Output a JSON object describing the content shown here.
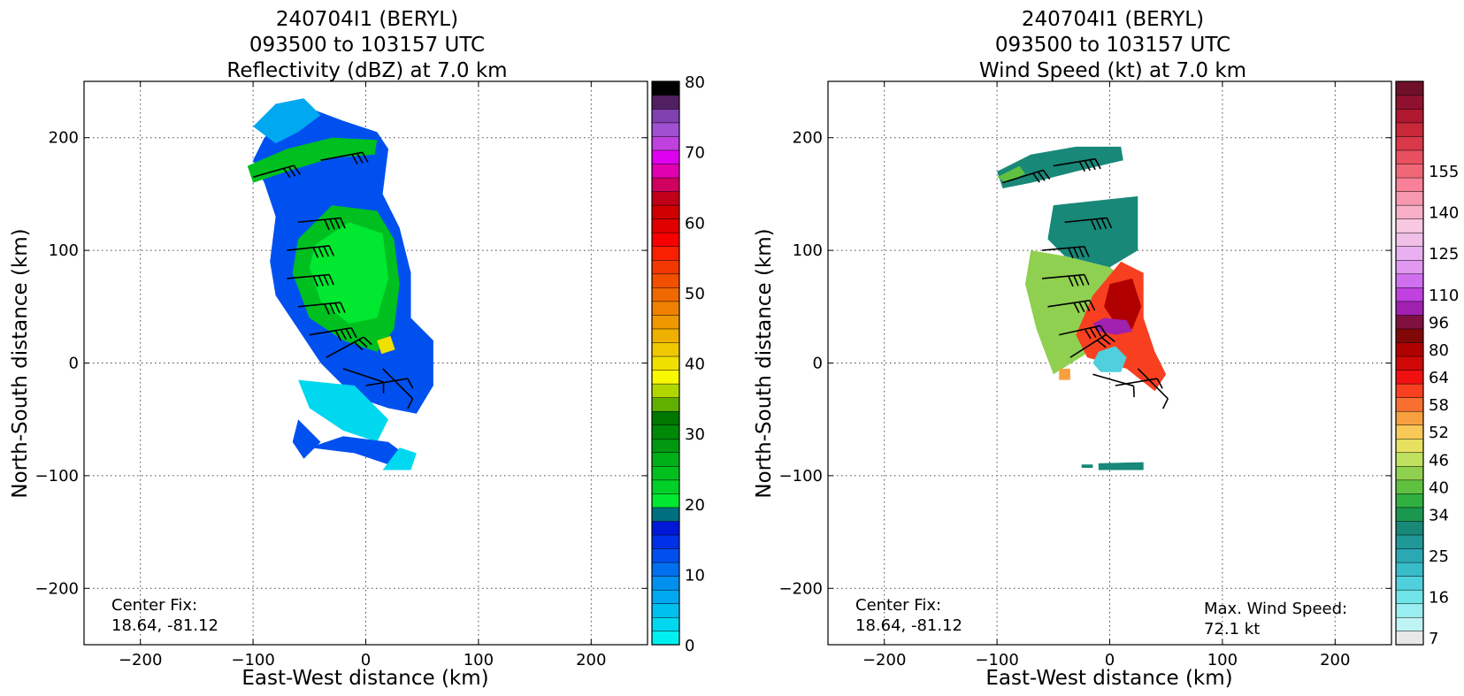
{
  "chart_data": [
    {
      "type": "heatmap",
      "title_lines": [
        "240704I1 (BERYL)",
        "093500 to 103157 UTC",
        "Reflectivity (dBZ) at 7.0 km"
      ],
      "xlabel": "East-West distance (km)",
      "ylabel": "North-South distance (km)",
      "xlim": [
        -250,
        250
      ],
      "ylim": [
        -250,
        250
      ],
      "xticks": [
        -200,
        -100,
        0,
        100,
        200
      ],
      "yticks": [
        -200,
        -100,
        0,
        100,
        200
      ],
      "xtick_labels": [
        "−200",
        "−100",
        "0",
        "100",
        "200"
      ],
      "ytick_labels": [
        "−200",
        "−100",
        "0",
        "100",
        "200"
      ],
      "grid": true,
      "annotation": [
        "Center Fix:",
        "18.64, -81.12"
      ],
      "colorbar": {
        "min": 0,
        "max": 80,
        "tick_values": [
          0,
          10,
          20,
          30,
          40,
          50,
          60,
          70,
          80
        ],
        "tick_labels": [
          "0",
          "10",
          "20",
          "30",
          "40",
          "50",
          "60",
          "70",
          "80"
        ],
        "colors": [
          "#00f0f0",
          "#00d8f0",
          "#00c0f0",
          "#00a8f0",
          "#0090f0",
          "#0070f0",
          "#0050f0",
          "#0030e8",
          "#0018d8",
          "#007080",
          "#00e830",
          "#00d028",
          "#00c020",
          "#00b018",
          "#009810",
          "#008808",
          "#007800",
          "#60b000",
          "#b0d800",
          "#f8f800",
          "#f0e000",
          "#f0c800",
          "#f0b000",
          "#f09800",
          "#f08000",
          "#f06800",
          "#f05000",
          "#f03800",
          "#f82000",
          "#f80000",
          "#e00000",
          "#d00000",
          "#c00018",
          "#d00060",
          "#e000b0",
          "#e000f0",
          "#c040e0",
          "#a050d0",
          "#8040b0",
          "#502060",
          "#000000"
        ]
      },
      "echo_regions": [
        {
          "color": "#0050f0",
          "points": [
            [
              -90,
              200
            ],
            [
              -60,
              230
            ],
            [
              -20,
              215
            ],
            [
              10,
              205
            ],
            [
              20,
              190
            ],
            [
              15,
              150
            ],
            [
              30,
              120
            ],
            [
              40,
              80
            ],
            [
              40,
              40
            ],
            [
              60,
              20
            ],
            [
              60,
              -20
            ],
            [
              45,
              -45
            ],
            [
              20,
              -40
            ],
            [
              -10,
              -30
            ],
            [
              -40,
              0
            ],
            [
              -60,
              30
            ],
            [
              -80,
              60
            ],
            [
              -85,
              90
            ],
            [
              -80,
              130
            ],
            [
              -90,
              160
            ],
            [
              -100,
              180
            ]
          ]
        },
        {
          "color": "#00a8f0",
          "points": [
            [
              -100,
              210
            ],
            [
              -80,
              230
            ],
            [
              -55,
              235
            ],
            [
              -40,
              220
            ],
            [
              -60,
              205
            ],
            [
              -80,
              195
            ]
          ]
        },
        {
          "color": "#00c020",
          "points": [
            [
              -105,
              175
            ],
            [
              -70,
              190
            ],
            [
              -30,
              200
            ],
            [
              10,
              198
            ],
            [
              8,
              185
            ],
            [
              -30,
              182
            ],
            [
              -70,
              170
            ],
            [
              -100,
              160
            ]
          ]
        },
        {
          "color": "#00c020",
          "points": [
            [
              -60,
              110
            ],
            [
              -30,
              140
            ],
            [
              10,
              135
            ],
            [
              25,
              110
            ],
            [
              30,
              70
            ],
            [
              25,
              30
            ],
            [
              10,
              10
            ],
            [
              -20,
              20
            ],
            [
              -50,
              40
            ],
            [
              -65,
              80
            ]
          ]
        },
        {
          "color": "#00e830",
          "points": [
            [
              -45,
              105
            ],
            [
              -15,
              125
            ],
            [
              15,
              115
            ],
            [
              20,
              75
            ],
            [
              10,
              40
            ],
            [
              -15,
              35
            ],
            [
              -40,
              55
            ],
            [
              -50,
              85
            ]
          ]
        },
        {
          "color": "#00d8f0",
          "points": [
            [
              -60,
              -15
            ],
            [
              -10,
              -20
            ],
            [
              20,
              -50
            ],
            [
              10,
              -70
            ],
            [
              -20,
              -60
            ],
            [
              -50,
              -40
            ]
          ]
        },
        {
          "color": "#0050f0",
          "points": [
            [
              -50,
              -75
            ],
            [
              -10,
              -80
            ],
            [
              20,
              -90
            ],
            [
              40,
              -85
            ],
            [
              20,
              -70
            ],
            [
              -20,
              -65
            ]
          ]
        },
        {
          "color": "#0050f0",
          "points": [
            [
              -60,
              -50
            ],
            [
              -40,
              -70
            ],
            [
              -55,
              -85
            ],
            [
              -65,
              -70
            ]
          ]
        },
        {
          "color": "#00d8f0",
          "points": [
            [
              15,
              -95
            ],
            [
              40,
              -95
            ],
            [
              45,
              -80
            ],
            [
              30,
              -75
            ]
          ]
        },
        {
          "color": "#f0e000",
          "points": [
            [
              10,
              20
            ],
            [
              22,
              24
            ],
            [
              26,
              12
            ],
            [
              14,
              8
            ]
          ]
        }
      ],
      "barbs": [
        {
          "x": -100,
          "y": 165,
          "u": 70,
          "v": 20
        },
        {
          "x": -40,
          "y": 180,
          "u": 80,
          "v": 15
        },
        {
          "x": -60,
          "y": 125,
          "u": 100,
          "v": 10
        },
        {
          "x": -70,
          "y": 100,
          "u": 110,
          "v": 12
        },
        {
          "x": -70,
          "y": 75,
          "u": 110,
          "v": 10
        },
        {
          "x": -60,
          "y": 50,
          "u": 100,
          "v": 10
        },
        {
          "x": -50,
          "y": 25,
          "u": 90,
          "v": 15
        },
        {
          "x": -35,
          "y": 5,
          "u": 55,
          "v": 30
        },
        {
          "x": -20,
          "y": -5,
          "u": 30,
          "v": -10
        },
        {
          "x": 0,
          "y": -20,
          "u": 30,
          "v": 5
        },
        {
          "x": 15,
          "y": -5,
          "u": 20,
          "v": -20
        }
      ]
    },
    {
      "type": "heatmap",
      "title_lines": [
        "240704I1 (BERYL)",
        "093500 to 103157 UTC",
        "Wind Speed (kt) at 7.0 km"
      ],
      "xlabel": "East-West distance (km)",
      "ylabel": "North-South distance (km)",
      "xlim": [
        -250,
        250
      ],
      "ylim": [
        -250,
        250
      ],
      "xticks": [
        -200,
        -100,
        0,
        100,
        200
      ],
      "yticks": [
        -200,
        -100,
        0,
        100,
        200
      ],
      "xtick_labels": [
        "−200",
        "−100",
        "0",
        "100",
        "200"
      ],
      "ytick_labels": [
        "−200",
        "−100",
        "0",
        "100",
        "200"
      ],
      "grid": true,
      "annotation": [
        "Center Fix:",
        "18.64, -81.12"
      ],
      "max_annotation": [
        "Max. Wind Speed:",
        "72.1 kt"
      ],
      "colorbar": {
        "levels": 40,
        "tick_labels": [
          "7",
          "16",
          "25",
          "34",
          "40",
          "46",
          "52",
          "58",
          "64",
          "80",
          "96",
          "110",
          "125",
          "140",
          "155"
        ],
        "tick_indices": [
          0,
          3,
          6,
          9,
          11,
          13,
          15,
          17,
          19,
          21,
          23,
          25,
          28,
          31,
          34
        ],
        "colors": [
          "#e8e8e8",
          "#c0f4f4",
          "#98eef0",
          "#70e4e8",
          "#50d0dc",
          "#38bcc8",
          "#2aa8b4",
          "#209898",
          "#188878",
          "#1a9850",
          "#30b040",
          "#60c040",
          "#90d050",
          "#c0e060",
          "#e8e060",
          "#f8c858",
          "#f8a040",
          "#f87030",
          "#f84020",
          "#f01010",
          "#d00808",
          "#b00000",
          "#800808",
          "#801040",
          "#a020b0",
          "#c040e0",
          "#d070f0",
          "#e098f0",
          "#e8b0f0",
          "#f0c0e8",
          "#f8c8e0",
          "#f8b0c8",
          "#f898b0",
          "#f88098",
          "#f06878",
          "#e85060",
          "#d83848",
          "#c82838",
          "#b01830",
          "#901030",
          "#701028"
        ]
      },
      "echo_regions": [
        {
          "color": "#188878",
          "points": [
            [
              -100,
              170
            ],
            [
              -70,
              185
            ],
            [
              -30,
              192
            ],
            [
              10,
              192
            ],
            [
              12,
              180
            ],
            [
              -30,
              170
            ],
            [
              -70,
              160
            ],
            [
              -95,
              155
            ]
          ]
        },
        {
          "color": "#60c040",
          "points": [
            [
              -100,
              165
            ],
            [
              -80,
              175
            ],
            [
              -75,
              168
            ],
            [
              -92,
              160
            ]
          ]
        },
        {
          "color": "#188878",
          "points": [
            [
              -50,
              140
            ],
            [
              25,
              148
            ],
            [
              25,
              100
            ],
            [
              0,
              85
            ],
            [
              -40,
              95
            ],
            [
              -55,
              110
            ]
          ]
        },
        {
          "color": "#90d050",
          "points": [
            [
              -70,
              100
            ],
            [
              -40,
              95
            ],
            [
              0,
              85
            ],
            [
              20,
              70
            ],
            [
              30,
              40
            ],
            [
              20,
              25
            ],
            [
              -10,
              15
            ],
            [
              -50,
              -10
            ],
            [
              -65,
              30
            ],
            [
              -75,
              70
            ]
          ]
        },
        {
          "color": "#f84020",
          "points": [
            [
              -15,
              60
            ],
            [
              10,
              90
            ],
            [
              30,
              80
            ],
            [
              30,
              40
            ],
            [
              40,
              10
            ],
            [
              50,
              -10
            ],
            [
              40,
              -25
            ],
            [
              15,
              -5
            ],
            [
              -20,
              5
            ],
            [
              -30,
              25
            ]
          ]
        },
        {
          "color": "#b00000",
          "points": [
            [
              0,
              70
            ],
            [
              20,
              75
            ],
            [
              28,
              50
            ],
            [
              20,
              30
            ],
            [
              5,
              35
            ],
            [
              -5,
              50
            ]
          ]
        },
        {
          "color": "#a020b0",
          "points": [
            [
              -15,
              35
            ],
            [
              -5,
              40
            ],
            [
              15,
              38
            ],
            [
              20,
              28
            ],
            [
              5,
              25
            ],
            [
              -10,
              28
            ]
          ]
        },
        {
          "color": "#50d0dc",
          "points": [
            [
              -10,
              10
            ],
            [
              5,
              15
            ],
            [
              15,
              5
            ],
            [
              10,
              -8
            ],
            [
              -8,
              -8
            ],
            [
              -15,
              0
            ]
          ]
        },
        {
          "color": "#188878",
          "points": [
            [
              -25,
              -90
            ],
            [
              -15,
              -90
            ],
            [
              -15,
              -93
            ],
            [
              -25,
              -93
            ]
          ]
        },
        {
          "color": "#188878",
          "points": [
            [
              -10,
              -89
            ],
            [
              30,
              -88
            ],
            [
              30,
              -95
            ],
            [
              -10,
              -95
            ]
          ]
        },
        {
          "color": "#f8a040",
          "points": [
            [
              -45,
              -5
            ],
            [
              -35,
              -5
            ],
            [
              -35,
              -15
            ],
            [
              -45,
              -15
            ]
          ]
        }
      ],
      "barbs": [
        {
          "x": -95,
          "y": 160,
          "u": 80,
          "v": 25
        },
        {
          "x": -50,
          "y": 175,
          "u": 90,
          "v": 15
        },
        {
          "x": -40,
          "y": 125,
          "u": 100,
          "v": 10
        },
        {
          "x": -60,
          "y": 100,
          "u": 110,
          "v": 10
        },
        {
          "x": -60,
          "y": 75,
          "u": 110,
          "v": 10
        },
        {
          "x": -55,
          "y": 50,
          "u": 100,
          "v": 15
        },
        {
          "x": -45,
          "y": 25,
          "u": 90,
          "v": 20
        },
        {
          "x": -35,
          "y": 5,
          "u": 55,
          "v": 35
        },
        {
          "x": -15,
          "y": -10,
          "u": 35,
          "v": -10
        },
        {
          "x": 5,
          "y": -20,
          "u": 30,
          "v": 5
        },
        {
          "x": 25,
          "y": -5,
          "u": 25,
          "v": -25
        }
      ]
    }
  ]
}
